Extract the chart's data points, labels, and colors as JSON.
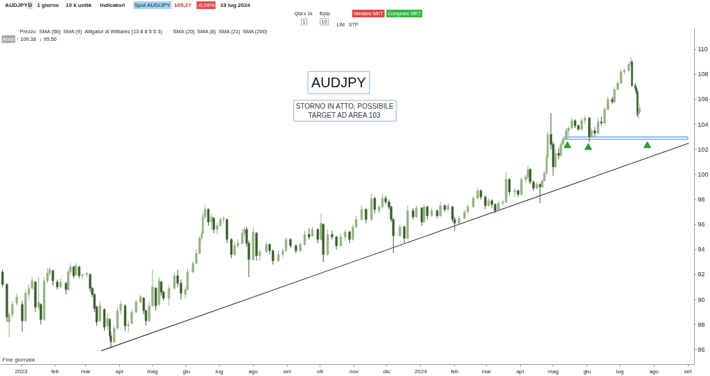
{
  "chart_data": {
    "type": "candlestick",
    "title": "AUDJPY",
    "annotations": [
      "STORNO IN ATTO, POSSIBILE\nTARGET AD AREA 103",
      "AUDJPY",
      "D",
      "1 giorno",
      "10 k unità",
      "Indicatori",
      "Spot AUD/JPY",
      "105,27",
      "-0,09%",
      "19 lug 2024",
      "Qtà x 1k",
      "€/pip",
      "1",
      "10",
      "LIM",
      "STP",
      "Vendere MKT",
      "Comprare MKT",
      "Prezzo",
      "SMA (50)",
      "SMA (9)",
      "Alligator di Williams (13 8 8 5 5 3)",
      "SMA (20)",
      "SMA (8)",
      "SMA (21)",
      "SMA (200)",
      "Anno",
      "↑ 109,38",
      "↓ 95,50",
      "Fine giornata"
    ],
    "xlim": [
      "2022-12-13",
      "2024-09-07"
    ],
    "xticks": [
      {
        "value": "2023-01-01",
        "label": "2023"
      },
      {
        "value": "2023-02-01",
        "label": "feb"
      },
      {
        "value": "2023-03-01",
        "label": "mar"
      },
      {
        "value": "2023-04-01",
        "label": "apr"
      },
      {
        "value": "2023-05-01",
        "label": "mag"
      },
      {
        "value": "2023-06-01",
        "label": "giu"
      },
      {
        "value": "2023-07-01",
        "label": "lug"
      },
      {
        "value": "2023-08-01",
        "label": "ago"
      },
      {
        "value": "2023-09-01",
        "label": "set"
      },
      {
        "value": "2023-10-01",
        "label": "ott"
      },
      {
        "value": "2023-11-01",
        "label": "nov"
      },
      {
        "value": "2023-12-01",
        "label": "dic"
      },
      {
        "value": "2024-01-01",
        "label": "2024"
      },
      {
        "value": "2024-02-01",
        "label": "feb"
      },
      {
        "value": "2024-03-01",
        "label": "mar"
      },
      {
        "value": "2024-04-01",
        "label": "apr"
      },
      {
        "value": "2024-05-01",
        "label": "mag"
      },
      {
        "value": "2024-06-01",
        "label": "giu"
      },
      {
        "value": "2024-07-01",
        "label": "lug"
      },
      {
        "value": "2024-08-01",
        "label": "ago"
      },
      {
        "value": "2024-09-01",
        "label": "set"
      }
    ],
    "ylim": [
      84.8,
      111.7
    ],
    "yticks": [
      86,
      88,
      90,
      92,
      94,
      96,
      98,
      100,
      102,
      104,
      106,
      108,
      110
    ],
    "x": [
      "2022-12-15",
      "2022-12-19",
      "2022-12-21",
      "2022-12-24",
      "2022-12-28",
      "2023-01-02",
      "2023-01-05",
      "2023-01-08",
      "2023-01-11",
      "2023-01-14",
      "2023-01-17",
      "2023-01-19",
      "2023-01-22",
      "2023-01-25",
      "2023-01-27",
      "2023-01-30",
      "2023-02-03",
      "2023-02-06",
      "2023-02-11",
      "2023-02-13",
      "2023-02-15",
      "2023-02-18",
      "2023-02-20",
      "2023-02-23",
      "2023-02-26",
      "2023-03-02",
      "2023-03-05",
      "2023-03-07",
      "2023-03-09",
      "2023-03-11",
      "2023-03-14",
      "2023-03-18",
      "2023-03-21",
      "2023-03-23",
      "2023-03-24",
      "2023-03-27",
      "2023-03-30",
      "2023-04-02",
      "2023-04-06",
      "2023-04-09",
      "2023-04-12",
      "2023-04-16",
      "2023-04-20",
      "2023-04-23",
      "2023-04-25",
      "2023-04-28",
      "2023-05-01",
      "2023-05-04",
      "2023-05-07",
      "2023-05-09",
      "2023-05-11",
      "2023-05-16",
      "2023-05-21",
      "2023-05-24",
      "2023-05-27",
      "2023-05-31",
      "2023-06-02",
      "2023-06-07",
      "2023-06-10",
      "2023-06-13",
      "2023-06-15",
      "2023-06-16",
      "2023-06-18",
      "2023-06-21",
      "2023-06-24",
      "2023-06-26",
      "2023-06-29",
      "2023-07-02",
      "2023-07-05",
      "2023-07-08",
      "2023-07-12",
      "2023-07-15",
      "2023-07-18",
      "2023-07-22",
      "2023-07-24",
      "2023-07-26",
      "2023-07-28",
      "2023-08-01",
      "2023-08-04",
      "2023-08-07",
      "2023-08-13",
      "2023-08-16",
      "2023-08-19",
      "2023-08-24",
      "2023-08-28",
      "2023-08-31",
      "2023-09-04",
      "2023-09-09",
      "2023-09-13",
      "2023-09-17",
      "2023-09-21",
      "2023-09-24",
      "2023-09-29",
      "2023-10-02",
      "2023-10-04",
      "2023-10-08",
      "2023-10-12",
      "2023-10-16",
      "2023-10-20",
      "2023-10-24",
      "2023-10-28",
      "2023-10-31",
      "2023-11-03",
      "2023-11-08",
      "2023-11-12",
      "2023-11-17",
      "2023-11-20",
      "2023-11-24",
      "2023-11-27",
      "2023-11-30",
      "2023-12-03",
      "2023-12-05",
      "2023-12-07",
      "2023-12-13",
      "2023-12-17",
      "2023-12-20",
      "2023-12-25",
      "2023-12-28",
      "2024-01-02",
      "2024-01-04",
      "2024-01-07",
      "2024-01-11",
      "2024-01-16",
      "2024-01-19",
      "2024-01-23",
      "2024-01-26",
      "2024-01-30",
      "2024-02-01",
      "2024-02-05",
      "2024-02-10",
      "2024-02-13",
      "2024-02-18",
      "2024-02-22",
      "2024-02-25",
      "2024-02-29",
      "2024-03-03",
      "2024-03-06",
      "2024-03-09",
      "2024-03-12",
      "2024-03-16",
      "2024-03-19",
      "2024-03-22",
      "2024-03-27",
      "2024-03-30",
      "2024-04-02",
      "2024-04-06",
      "2024-04-08",
      "2024-04-10",
      "2024-04-13",
      "2024-04-16",
      "2024-04-19",
      "2024-04-21",
      "2024-04-23",
      "2024-04-25",
      "2024-04-26",
      "2024-04-29",
      "2024-05-01",
      "2024-05-03",
      "2024-05-06",
      "2024-05-08",
      "2024-05-10",
      "2024-05-13",
      "2024-05-15",
      "2024-05-18",
      "2024-05-21",
      "2024-05-24",
      "2024-05-27",
      "2024-05-30",
      "2024-06-03",
      "2024-06-05",
      "2024-06-08",
      "2024-06-11",
      "2024-06-14",
      "2024-06-17",
      "2024-06-20",
      "2024-06-24",
      "2024-06-26",
      "2024-06-29",
      "2024-07-02",
      "2024-07-05",
      "2024-07-09",
      "2024-07-11",
      "2024-07-12",
      "2024-07-15",
      "2024-07-16",
      "2024-07-17",
      "2024-07-18",
      "2024-07-19"
    ],
    "ohlc": [
      [
        92.2,
        92.4,
        91.0,
        91.2
      ],
      [
        91.2,
        91.3,
        88.2,
        88.6
      ],
      [
        88.2,
        89.0,
        87.0,
        88.8
      ],
      [
        88.8,
        89.9,
        88.5,
        89.6
      ],
      [
        89.7,
        90.5,
        89.5,
        90.2
      ],
      [
        89.6,
        89.9,
        87.4,
        88.3
      ],
      [
        88.3,
        90.8,
        88.2,
        90.5
      ],
      [
        90.4,
        91.2,
        90.0,
        90.9
      ],
      [
        90.9,
        91.8,
        90.8,
        91.5
      ],
      [
        91.4,
        91.5,
        89.0,
        89.4
      ],
      [
        89.4,
        91.8,
        89.1,
        89.8
      ],
      [
        89.6,
        89.7,
        88.0,
        88.4
      ],
      [
        88.4,
        91.8,
        88.3,
        91.5
      ],
      [
        91.5,
        92.5,
        91.3,
        92.1
      ],
      [
        92.1,
        92.6,
        91.9,
        92.4
      ],
      [
        92.3,
        92.4,
        91.1,
        91.5
      ],
      [
        91.4,
        91.6,
        90.8,
        91.0
      ],
      [
        91.0,
        91.7,
        90.9,
        91.4
      ],
      [
        91.3,
        91.4,
        90.4,
        90.8
      ],
      [
        90.8,
        92.4,
        90.7,
        92.2
      ],
      [
        92.2,
        92.9,
        92.0,
        92.6
      ],
      [
        92.6,
        92.7,
        91.7,
        91.9
      ],
      [
        92.0,
        92.9,
        91.9,
        92.7
      ],
      [
        92.6,
        92.7,
        91.7,
        91.9
      ],
      [
        91.9,
        92.1,
        91.6,
        92.0
      ],
      [
        92.0,
        92.2,
        91.7,
        92.1
      ],
      [
        92.0,
        92.1,
        90.6,
        90.9
      ],
      [
        90.9,
        91.0,
        90.2,
        90.4
      ],
      [
        90.4,
        90.5,
        89.0,
        89.3
      ],
      [
        89.4,
        89.5,
        87.9,
        88.2
      ],
      [
        88.3,
        89.9,
        88.2,
        89.5
      ],
      [
        89.2,
        89.3,
        87.5,
        87.8
      ],
      [
        87.9,
        88.9,
        87.6,
        88.5
      ],
      [
        88.4,
        88.5,
        86.8,
        87.1
      ],
      [
        87.1,
        87.4,
        86.1,
        86.6
      ],
      [
        86.6,
        87.9,
        86.5,
        87.7
      ],
      [
        87.7,
        89.4,
        87.6,
        89.1
      ],
      [
        89.1,
        89.9,
        88.8,
        89.6
      ],
      [
        89.5,
        89.6,
        87.5,
        87.9
      ],
      [
        87.9,
        88.3,
        87.4,
        88.0
      ],
      [
        88.1,
        89.2,
        88.0,
        89.0
      ],
      [
        89.0,
        90.0,
        88.9,
        89.8
      ],
      [
        89.8,
        90.4,
        89.7,
        90.2
      ],
      [
        90.1,
        90.2,
        88.8,
        89.1
      ],
      [
        89.1,
        89.2,
        87.9,
        88.3
      ],
      [
        88.3,
        89.8,
        88.2,
        89.5
      ],
      [
        89.5,
        92.4,
        89.4,
        91.0
      ],
      [
        90.9,
        91.0,
        89.1,
        89.5
      ],
      [
        89.6,
        91.8,
        89.5,
        91.5
      ],
      [
        91.4,
        91.5,
        90.3,
        90.6
      ],
      [
        90.6,
        90.7,
        89.9,
        90.1
      ],
      [
        90.1,
        91.2,
        89.5,
        90.9
      ],
      [
        90.9,
        92.2,
        90.8,
        91.9
      ],
      [
        91.9,
        92.4,
        91.0,
        91.3
      ],
      [
        91.3,
        91.6,
        90.0,
        90.5
      ],
      [
        90.4,
        91.0,
        90.1,
        90.8
      ],
      [
        90.8,
        92.5,
        90.7,
        92.2
      ],
      [
        92.2,
        93.1,
        92.1,
        92.9
      ],
      [
        92.9,
        94.0,
        92.8,
        93.7
      ],
      [
        93.7,
        95.1,
        93.6,
        94.9
      ],
      [
        94.9,
        95.5,
        94.7,
        95.3
      ],
      [
        95.3,
        96.9,
        95.2,
        96.6
      ],
      [
        96.6,
        97.6,
        96.4,
        97.2
      ],
      [
        97.2,
        97.3,
        95.9,
        96.2
      ],
      [
        96.2,
        96.9,
        95.5,
        96.6
      ],
      [
        96.5,
        96.6,
        95.3,
        95.6
      ],
      [
        95.6,
        96.2,
        95.2,
        95.9
      ],
      [
        95.9,
        96.6,
        95.8,
        96.4
      ],
      [
        96.4,
        96.7,
        96.1,
        96.5
      ],
      [
        96.4,
        96.5,
        94.5,
        94.8
      ],
      [
        94.8,
        94.9,
        93.3,
        93.6
      ],
      [
        93.6,
        94.6,
        93.5,
        94.3
      ],
      [
        94.3,
        94.8,
        94.1,
        94.5
      ],
      [
        94.5,
        95.6,
        94.4,
        95.3
      ],
      [
        95.3,
        95.8,
        95.0,
        95.6
      ],
      [
        95.6,
        95.8,
        94.2,
        94.5
      ],
      [
        94.5,
        94.7,
        91.8,
        93.2
      ],
      [
        93.2,
        95.8,
        93.1,
        95.4
      ],
      [
        95.3,
        95.4,
        93.1,
        93.5
      ],
      [
        93.5,
        94.0,
        93.1,
        93.8
      ],
      [
        93.8,
        94.6,
        93.7,
        94.4
      ],
      [
        94.4,
        94.5,
        93.6,
        93.9
      ],
      [
        93.9,
        94.0,
        92.8,
        93.1
      ],
      [
        93.1,
        93.9,
        93.0,
        93.6
      ],
      [
        93.6,
        94.1,
        93.4,
        93.9
      ],
      [
        93.9,
        95.0,
        93.8,
        94.8
      ],
      [
        94.8,
        94.9,
        94.1,
        94.3
      ],
      [
        94.3,
        94.4,
        93.7,
        93.9
      ],
      [
        93.9,
        94.6,
        93.8,
        94.4
      ],
      [
        94.4,
        95.5,
        94.3,
        95.2
      ],
      [
        95.2,
        95.7,
        94.8,
        95.0
      ],
      [
        95.1,
        95.8,
        95.0,
        95.6
      ],
      [
        95.6,
        95.7,
        94.5,
        94.8
      ],
      [
        94.8,
        96.9,
        94.7,
        96.1
      ],
      [
        96.0,
        96.1,
        93.0,
        93.6
      ],
      [
        93.6,
        95.6,
        93.5,
        95.2
      ],
      [
        95.2,
        95.5,
        94.8,
        95.0
      ],
      [
        95.0,
        95.1,
        94.0,
        94.3
      ],
      [
        94.3,
        95.3,
        94.2,
        95.0
      ],
      [
        95.0,
        95.6,
        94.7,
        95.4
      ],
      [
        95.4,
        95.5,
        94.5,
        94.8
      ],
      [
        94.8,
        96.0,
        94.7,
        95.8
      ],
      [
        95.8,
        96.7,
        95.7,
        96.4
      ],
      [
        96.4,
        97.5,
        96.3,
        97.2
      ],
      [
        97.2,
        97.3,
        96.1,
        96.4
      ],
      [
        96.4,
        98.5,
        96.3,
        98.1
      ],
      [
        98.1,
        98.2,
        96.9,
        97.2
      ],
      [
        97.1,
        97.6,
        96.9,
        97.4
      ],
      [
        97.4,
        98.4,
        97.3,
        98.1
      ],
      [
        98.1,
        98.3,
        97.6,
        97.8
      ],
      [
        97.8,
        98.0,
        97.2,
        97.4
      ],
      [
        97.4,
        97.5,
        96.2,
        96.4
      ],
      [
        96.4,
        96.5,
        93.7,
        95.1
      ],
      [
        95.1,
        96.0,
        95.0,
        95.8
      ],
      [
        95.8,
        95.9,
        94.5,
        94.9
      ],
      [
        94.9,
        97.5,
        94.8,
        97.1
      ],
      [
        97.1,
        97.3,
        96.4,
        96.6
      ],
      [
        96.6,
        97.5,
        96.5,
        97.3
      ],
      [
        97.3,
        97.4,
        95.9,
        96.2
      ],
      [
        96.2,
        97.6,
        96.1,
        97.4
      ],
      [
        97.4,
        97.5,
        96.4,
        96.7
      ],
      [
        96.7,
        97.3,
        96.6,
        97.1
      ],
      [
        97.1,
        97.2,
        96.5,
        96.7
      ],
      [
        96.7,
        97.8,
        96.6,
        97.5
      ],
      [
        97.5,
        97.6,
        97.0,
        97.2
      ],
      [
        97.2,
        97.7,
        97.1,
        97.5
      ],
      [
        97.4,
        97.5,
        96.2,
        96.4
      ],
      [
        96.4,
        96.6,
        95.5,
        96.1
      ],
      [
        96.1,
        96.7,
        96.0,
        96.5
      ],
      [
        96.5,
        97.2,
        96.4,
        97.0
      ],
      [
        97.0,
        97.6,
        96.9,
        97.4
      ],
      [
        97.4,
        98.3,
        97.3,
        98.1
      ],
      [
        98.1,
        98.9,
        98.0,
        98.7
      ],
      [
        98.7,
        98.8,
        98.0,
        98.2
      ],
      [
        98.2,
        98.3,
        97.2,
        97.5
      ],
      [
        97.5,
        98.1,
        97.4,
        97.9
      ],
      [
        97.9,
        98.0,
        97.3,
        97.6
      ],
      [
        97.6,
        97.7,
        96.9,
        97.1
      ],
      [
        97.1,
        97.9,
        97.0,
        97.7
      ],
      [
        97.7,
        98.0,
        97.5,
        97.8
      ],
      [
        97.8,
        100.2,
        97.7,
        99.6
      ],
      [
        99.6,
        99.7,
        98.3,
        98.6
      ],
      [
        98.6,
        98.9,
        98.2,
        98.7
      ],
      [
        98.7,
        98.8,
        98.2,
        98.4
      ],
      [
        98.4,
        99.8,
        98.3,
        99.6
      ],
      [
        99.6,
        100.0,
        99.3,
        99.8
      ],
      [
        99.8,
        100.7,
        99.5,
        100.4
      ],
      [
        100.4,
        100.5,
        99.2,
        99.4
      ],
      [
        99.4,
        99.5,
        98.7,
        98.9
      ],
      [
        98.9,
        99.4,
        98.8,
        99.2
      ],
      [
        99.2,
        99.3,
        97.7,
        99.0
      ],
      [
        99.0,
        99.6,
        98.9,
        99.5
      ],
      [
        99.5,
        100.3,
        99.4,
        100.1
      ],
      [
        100.1,
        101.6,
        100.0,
        101.4
      ],
      [
        101.4,
        103.4,
        101.3,
        103.2
      ],
      [
        103.2,
        104.9,
        102.0,
        102.4
      ],
      [
        102.4,
        102.6,
        99.9,
        100.6
      ],
      [
        100.6,
        102.0,
        100.5,
        101.7
      ],
      [
        101.7,
        102.1,
        101.2,
        101.5
      ],
      [
        101.5,
        102.6,
        101.4,
        102.4
      ],
      [
        102.4,
        103.0,
        102.3,
        102.8
      ],
      [
        102.8,
        103.7,
        102.7,
        103.5
      ],
      [
        103.5,
        103.9,
        102.9,
        103.7
      ],
      [
        103.7,
        104.5,
        103.6,
        104.3
      ],
      [
        104.3,
        104.4,
        103.7,
        103.9
      ],
      [
        103.9,
        104.0,
        103.5,
        103.6
      ],
      [
        103.6,
        104.5,
        103.5,
        104.3
      ],
      [
        104.3,
        104.7,
        104.0,
        104.5
      ],
      [
        104.5,
        104.6,
        102.6,
        103.0
      ],
      [
        103.0,
        103.7,
        102.9,
        103.5
      ],
      [
        103.5,
        103.8,
        103.0,
        103.3
      ],
      [
        103.3,
        104.5,
        103.2,
        104.2
      ],
      [
        104.2,
        104.6,
        103.9,
        104.1
      ],
      [
        104.1,
        105.4,
        104.0,
        105.2
      ],
      [
        105.2,
        106.2,
        105.1,
        106.0
      ],
      [
        106.0,
        106.2,
        105.6,
        105.8
      ],
      [
        105.8,
        107.0,
        105.7,
        106.8
      ],
      [
        106.8,
        107.5,
        106.7,
        107.3
      ],
      [
        107.3,
        108.4,
        107.2,
        108.2
      ],
      [
        108.2,
        108.5,
        108.0,
        108.3
      ],
      [
        108.3,
        109.0,
        108.2,
        108.8
      ],
      [
        108.8,
        109.38,
        108.6,
        109.0
      ],
      [
        109.0,
        109.1,
        107.0,
        107.1
      ],
      [
        107.1,
        107.3,
        106.7,
        106.9
      ],
      [
        106.9,
        107.0,
        106.4,
        106.6
      ],
      [
        106.6,
        106.7,
        104.6,
        104.8
      ],
      [
        104.8,
        105.2,
        104.45,
        105.0
      ],
      [
        105.0,
        105.7,
        104.9,
        105.27
      ]
    ],
    "colors": [
      "#3a5c2c",
      "#3a5c2c",
      "#93b383",
      "#93b383",
      "#93b383",
      "#3a5c2c",
      "#93b383",
      "#93b383",
      "#93b383",
      "#3a5c2c",
      "#93b383",
      "#3a5c2c",
      "#93b383",
      "#93b383",
      "#93b383",
      "#3a5c2c",
      "#3a5c2c",
      "#93b383",
      "#3a5c2c",
      "#93b383",
      "#93b383",
      "#3a5c2c",
      "#93b383",
      "#3a5c2c",
      "#93b383",
      "#93b383",
      "#3a5c2c",
      "#3a5c2c",
      "#3a5c2c",
      "#3a5c2c",
      "#93b383",
      "#3a5c2c",
      "#93b383",
      "#3a5c2c",
      "#3a5c2c",
      "#93b383",
      "#93b383",
      "#93b383",
      "#3a5c2c",
      "#93b383",
      "#93b383",
      "#93b383",
      "#93b383",
      "#3a5c2c",
      "#3a5c2c",
      "#93b383",
      "#93b383",
      "#3a5c2c",
      "#93b383",
      "#3a5c2c",
      "#3a5c2c",
      "#93b383",
      "#93b383",
      "#3a5c2c",
      "#3a5c2c",
      "#93b383",
      "#93b383",
      "#93b383",
      "#93b383",
      "#93b383",
      "#93b383",
      "#93b383",
      "#93b383",
      "#3a5c2c",
      "#93b383",
      "#3a5c2c",
      "#93b383",
      "#93b383",
      "#93b383",
      "#3a5c2c",
      "#3a5c2c",
      "#93b383",
      "#93b383",
      "#93b383",
      "#93b383",
      "#3a5c2c",
      "#3a5c2c",
      "#93b383",
      "#3a5c2c",
      "#93b383",
      "#93b383",
      "#3a5c2c",
      "#3a5c2c",
      "#93b383",
      "#93b383",
      "#93b383",
      "#3a5c2c",
      "#3a5c2c",
      "#93b383",
      "#93b383",
      "#3a5c2c",
      "#93b383",
      "#3a5c2c",
      "#93b383",
      "#3a5c2c",
      "#93b383",
      "#3a5c2c",
      "#3a5c2c",
      "#93b383",
      "#93b383",
      "#3a5c2c",
      "#93b383",
      "#93b383",
      "#93b383",
      "#3a5c2c",
      "#93b383",
      "#3a5c2c",
      "#93b383",
      "#93b383",
      "#3a5c2c",
      "#3a5c2c",
      "#3a5c2c",
      "#3a5c2c",
      "#93b383",
      "#3a5c2c",
      "#93b383",
      "#3a5c2c",
      "#93b383",
      "#3a5c2c",
      "#93b383",
      "#3a5c2c",
      "#93b383",
      "#3a5c2c",
      "#93b383",
      "#3a5c2c",
      "#93b383",
      "#3a5c2c",
      "#3a5c2c",
      "#93b383",
      "#93b383",
      "#93b383",
      "#93b383",
      "#93b383",
      "#3a5c2c",
      "#3a5c2c",
      "#93b383",
      "#3a5c2c",
      "#3a5c2c",
      "#93b383",
      "#93b383",
      "#93b383",
      "#3a5c2c",
      "#93b383",
      "#3a5c2c",
      "#93b383",
      "#93b383",
      "#93b383",
      "#3a5c2c",
      "#3a5c2c",
      "#93b383",
      "#3a5c2c",
      "#93b383",
      "#93b383",
      "#93b383",
      "#93b383",
      "#3a5c2c",
      "#3a5c2c",
      "#93b383",
      "#3a5c2c",
      "#93b383",
      "#93b383",
      "#93b383",
      "#93b383",
      "#93b383",
      "#3a5c2c",
      "#3a5c2c",
      "#93b383",
      "#93b383",
      "#3a5c2c",
      "#93b383",
      "#3a5c2c",
      "#93b383",
      "#3a5c2c",
      "#93b383",
      "#93b383",
      "#3a5c2c",
      "#93b383",
      "#93b383",
      "#93b383",
      "#93b383",
      "#93b383",
      "#93b383",
      "#3a5c2c",
      "#3a5c2c",
      "#3a5c2c",
      "#3a5c2c",
      "#93b383",
      "#93b383"
    ],
    "series": [
      {
        "type": "line",
        "x": [
          "2023-03-15",
          "2024-09-02"
        ],
        "values": [
          85.9,
          102.5
        ],
        "color": "#333333"
      },
      {
        "type": "line",
        "x": [
          "2024-05-11",
          "2024-09-01"
        ],
        "values": [
          103.0,
          103.0
        ],
        "lower": [
          102.8,
          102.8
        ],
        "upper": [
          103.0,
          103.0
        ],
        "color": "#7aa7ee"
      },
      {
        "type": "scatter",
        "x": [
          "2024-05-14",
          "2024-06-02",
          "2024-07-26"
        ],
        "values": [
          102.3,
          102.15,
          102.3
        ],
        "color": "#2e9c2e",
        "marker": "triangle"
      }
    ]
  }
}
